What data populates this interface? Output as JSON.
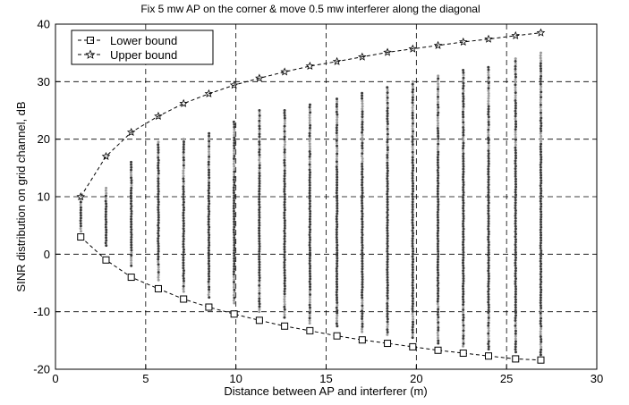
{
  "chart_data": {
    "type": "scatter",
    "title": "Fix 5 mw AP on the corner  &  move 0.5 mw interferer along the diagonal",
    "xlabel": "Distance between AP and interferer  (m)",
    "ylabel": "SINR distribution on grid channel, dB",
    "xlim": [
      0,
      30
    ],
    "ylim": [
      -20,
      40
    ],
    "xticks": [
      0,
      5,
      10,
      15,
      20,
      25,
      30
    ],
    "yticks": [
      -20,
      -10,
      0,
      10,
      20,
      30,
      40
    ],
    "grid": true,
    "legend_position": "top-left",
    "series": [
      {
        "name": "Lower bound",
        "style": "dashed-line-square-marker",
        "x": [
          1.4,
          2.8,
          4.2,
          5.7,
          7.1,
          8.5,
          9.9,
          11.3,
          12.7,
          14.1,
          15.6,
          17.0,
          18.4,
          19.8,
          21.2,
          22.6,
          24.0,
          25.5,
          26.9
        ],
        "y": [
          3.0,
          -1.0,
          -4.0,
          -6.0,
          -7.8,
          -9.2,
          -10.4,
          -11.5,
          -12.5,
          -13.3,
          -14.2,
          -14.9,
          -15.5,
          -16.1,
          -16.7,
          -17.2,
          -17.7,
          -18.2,
          -18.4
        ]
      },
      {
        "name": "Upper bound",
        "style": "dashed-line-star-marker",
        "x": [
          1.4,
          2.8,
          4.2,
          5.7,
          7.1,
          8.5,
          9.9,
          11.3,
          12.7,
          14.1,
          15.6,
          17.0,
          18.4,
          19.8,
          21.2,
          22.6,
          24.0,
          25.5,
          26.9
        ],
        "y": [
          10.0,
          17.0,
          21.2,
          24.0,
          26.2,
          27.9,
          29.4,
          30.6,
          31.7,
          32.7,
          33.5,
          34.3,
          35.1,
          35.7,
          36.3,
          36.9,
          37.4,
          38.0,
          38.5
        ]
      },
      {
        "name": "",
        "style": "dot-columns",
        "x": [
          1.4,
          2.8,
          4.2,
          5.7,
          7.1,
          8.5,
          9.9,
          11.3,
          12.7,
          14.1,
          15.6,
          17.0,
          18.4,
          19.8,
          21.2,
          22.6,
          24.0,
          25.5,
          26.9
        ],
        "ymin": [
          4,
          1.5,
          -2,
          -4.5,
          -6.5,
          -7.5,
          -8.5,
          -10,
          -11,
          -12,
          -12.5,
          -13.5,
          -14,
          -14.5,
          -15.5,
          -16,
          -16.5,
          -17,
          -17.5
        ],
        "ymax": [
          9.5,
          11.5,
          16,
          19.5,
          20,
          21,
          23,
          25,
          25,
          26,
          27,
          28,
          29,
          30,
          31,
          32,
          32.5,
          34,
          35
        ]
      }
    ]
  },
  "colors": {
    "axis": "#000000",
    "grid": "#000000",
    "line": "#000000",
    "dot_dark": "#3a3a3a",
    "dot_light": "#9a9a9a"
  }
}
